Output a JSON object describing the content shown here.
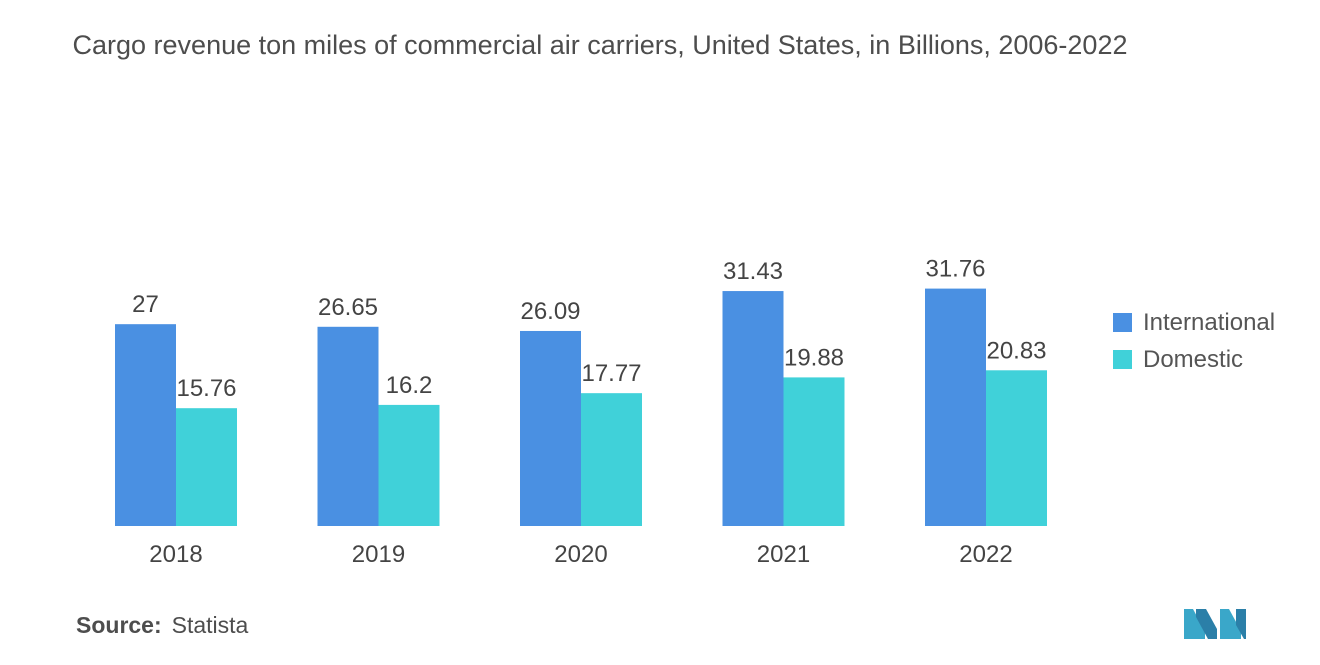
{
  "title": "Cargo revenue ton miles of commercial air carriers, United States, in Billions, 2006-2022",
  "source": {
    "label": "Source:",
    "value": "Statista"
  },
  "colors": {
    "international": "#4a90e2",
    "domestic": "#40d1d9",
    "text": "#4d4d4d",
    "logo": "#3aa7c9"
  },
  "chart_data": {
    "type": "bar",
    "title": "Cargo revenue ton miles of commercial air carriers, United States, in Billions, 2006-2022",
    "categories": [
      "2018",
      "2019",
      "2020",
      "2021",
      "2022"
    ],
    "series": [
      {
        "name": "International",
        "values": [
          27,
          26.65,
          26.09,
          31.43,
          31.76
        ],
        "color": "#4a90e2"
      },
      {
        "name": "Domestic",
        "values": [
          15.76,
          16.2,
          17.77,
          19.88,
          20.83
        ],
        "color": "#40d1d9"
      }
    ],
    "value_labels": [
      [
        "27",
        "26.65",
        "26.09",
        "31.43",
        "31.76"
      ],
      [
        "15.76",
        "16.2",
        "17.77",
        "19.88",
        "20.83"
      ]
    ],
    "xlabel": "",
    "ylabel": "",
    "ylim": [
      0,
      35
    ],
    "grid": false,
    "legend": "right"
  }
}
